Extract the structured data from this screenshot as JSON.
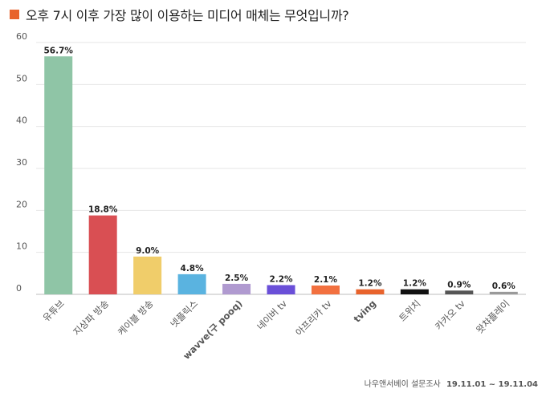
{
  "title": "오후 7시 이후 가장 많이 이용하는 미디어 매체는 무엇입니까?",
  "title_marker_color": "#e8632c",
  "source": {
    "label": "나우앤서베이 설문조사",
    "dates": "19.11.01 ~ 19.11.04"
  },
  "chart_data": {
    "type": "bar",
    "title": "오후 7시 이후 가장 많이 이용하는 미디어 매체는 무엇입니까?",
    "xlabel": "",
    "ylabel": "",
    "ylim": [
      0,
      60
    ],
    "yticks": [
      "0",
      "10",
      "20",
      "30",
      "40",
      "50",
      "60"
    ],
    "grid": true,
    "legend": "none",
    "categories": [
      "유튜브",
      "지상파 방송",
      "케이블 방송",
      "넷플릭스",
      "wavve(구 pooq)",
      "네이버 tv",
      "아프리카 tv",
      "tving",
      "트위치",
      "카카오 tv",
      "왓챠플레이"
    ],
    "values": [
      56.7,
      18.8,
      9.0,
      4.8,
      2.5,
      2.2,
      2.1,
      1.2,
      1.2,
      0.9,
      0.6
    ],
    "value_labels": [
      "56.7%",
      "18.8%",
      "9.0%",
      "4.8%",
      "2.5%",
      "2.2%",
      "2.1%",
      "1.2%",
      "1.2%",
      "0.9%",
      "0.6%"
    ],
    "colors": [
      "#8fc5a6",
      "#d94f53",
      "#f0cd6a",
      "#5ab3e0",
      "#b09ad0",
      "#6a4fd8",
      "#f2703f",
      "#e8632c",
      "#111111",
      "#555555",
      "#9a9a9a"
    ]
  }
}
